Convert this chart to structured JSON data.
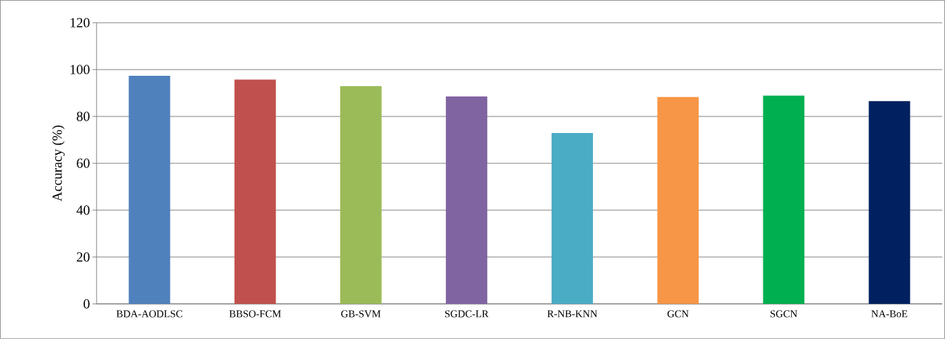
{
  "chart_data": {
    "type": "bar",
    "ylabel": "Accuracy (%)",
    "categories": [
      "BDA-AODLSC",
      "BBSO-FCM",
      "GB-SVM",
      "SGDC-LR",
      "R-NB-KNN",
      "GCN",
      "SGCN",
      "NA-BoE"
    ],
    "values": [
      97.3,
      95.7,
      92.9,
      88.5,
      72.9,
      88.3,
      88.9,
      86.5
    ],
    "colors": [
      "#4f81bd",
      "#c0504d",
      "#9bbb59",
      "#8064a2",
      "#4bacc6",
      "#f79646",
      "#00b050",
      "#002060"
    ],
    "ylim": [
      0,
      120
    ],
    "yticks": [
      0,
      20,
      40,
      60,
      80,
      100,
      120
    ],
    "grid": "y"
  }
}
